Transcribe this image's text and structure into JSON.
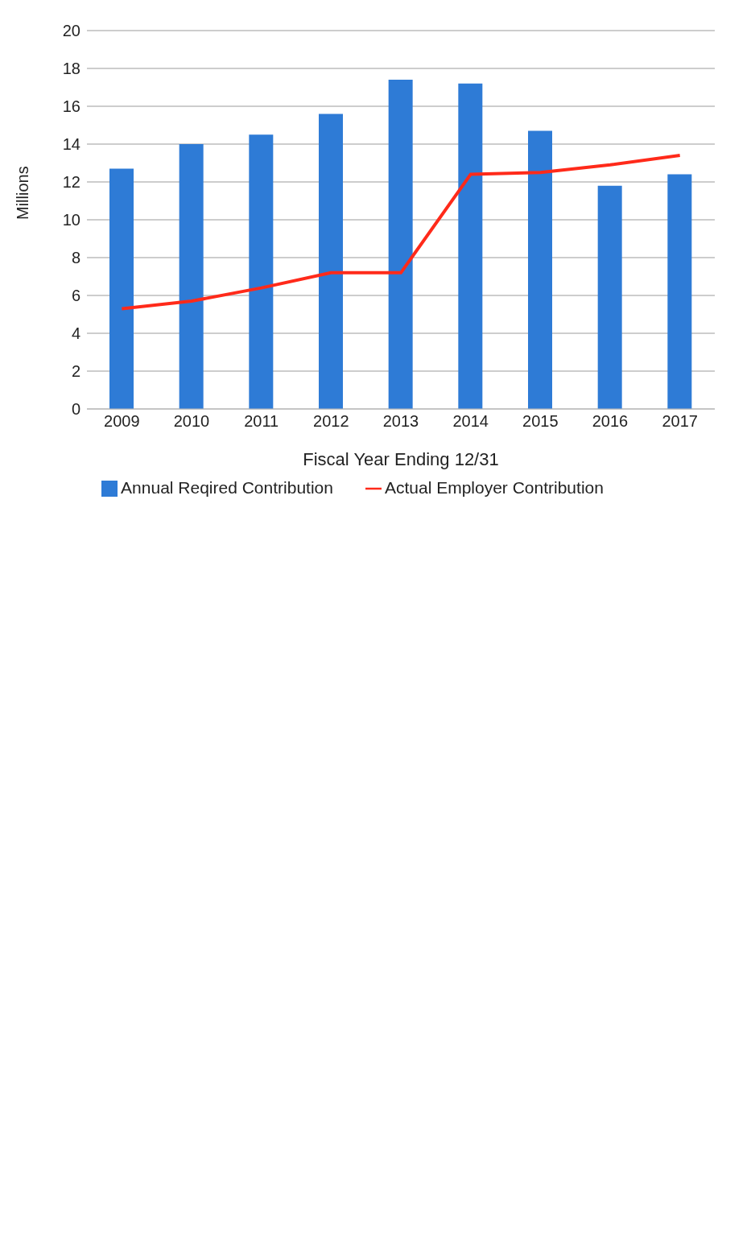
{
  "chart_data": {
    "type": "bar",
    "xlabel": "Fiscal Year Ending 12/31",
    "ylabel": "Millions",
    "categories": [
      "2009",
      "2010",
      "2011",
      "2012",
      "2013",
      "2014",
      "2015",
      "2016",
      "2017"
    ],
    "series": [
      {
        "name": "Annual Reqired Contribution",
        "color": "#2e7bd6",
        "values": [
          12.7,
          14.0,
          14.5,
          15.6,
          17.4,
          17.2,
          14.7,
          11.8,
          12.4
        ]
      },
      {
        "name": "Actual Employer Contribution",
        "type": "line",
        "color": "#ff2a1a",
        "values": [
          5.3,
          5.7,
          6.4,
          7.2,
          7.2,
          12.4,
          12.5,
          12.9,
          13.4
        ]
      }
    ],
    "ylim": [
      0,
      20
    ],
    "yticks": [
      0,
      2,
      4,
      6,
      8,
      10,
      12,
      14,
      16,
      18,
      20
    ],
    "grid": "y",
    "legend": "bottom",
    "marker": "none",
    "line_style": "solid"
  }
}
